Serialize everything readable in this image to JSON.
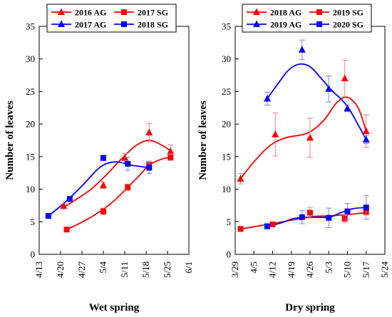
{
  "colors": {
    "ag": "#ff0000",
    "sg": "#ff0000",
    "ag_alt": "#0000ff",
    "sg_alt": "#0000ff"
  },
  "chart_data": [
    {
      "type": "scatter",
      "xlabel": "Wet spring",
      "ylabel": "Number of leaves",
      "ylim": [
        0,
        35
      ],
      "yticks": [
        0,
        5,
        10,
        15,
        20,
        25,
        30,
        35
      ],
      "xticks": [
        "4/13",
        "4/20",
        "4/27",
        "5/4",
        "5/11",
        "5/18",
        "5/25",
        "6/1"
      ],
      "grid": false,
      "legend": "top-left",
      "series": [
        {
          "name": "2016 AG",
          "color": "#ff0000",
          "marker": "triangle",
          "x": [
            "4/21",
            "5/4",
            "5/11",
            "5/19",
            "5/26"
          ],
          "values": [
            7.4,
            10.6,
            14.8,
            18.7,
            15.8
          ],
          "err": [
            0.3,
            0.5,
            0.7,
            1.4,
            1.0
          ],
          "curve_y": [
            7.2,
            8.4,
            10.0,
            12.2,
            14.7,
            16.8,
            17.5,
            16.8,
            15.9
          ]
        },
        {
          "name": "2017 SG",
          "color": "#ff0000",
          "marker": "square",
          "x": [
            "4/22",
            "5/4",
            "5/12",
            "5/19",
            "5/26"
          ],
          "values": [
            3.8,
            6.6,
            10.3,
            13.7,
            14.9
          ],
          "err": [
            0.3,
            0.5,
            0.5,
            0.6,
            0.5
          ],
          "curve_y": [
            3.8,
            4.7,
            6.0,
            8.0,
            10.3,
            12.2,
            13.7,
            14.6,
            14.9
          ]
        },
        {
          "name": "2017 AG",
          "color": "#0000ff",
          "marker": "triangle",
          "x": [],
          "values": [],
          "err": [],
          "curve_y": [
            5.9,
            7.8,
            10.5,
            13.4,
            14.2,
            13.7,
            13.3
          ]
        },
        {
          "name": "2018 SG",
          "color": "#0000ff",
          "marker": "square",
          "x": [
            "4/16",
            "4/23",
            "5/4",
            "5/12",
            "5/19"
          ],
          "values": [
            5.9,
            8.5,
            14.8,
            13.9,
            13.3
          ],
          "err": [
            0.2,
            0.3,
            0.4,
            1.0,
            0.9
          ]
        }
      ],
      "curve_x": {
        "2016 AG": [
          "4/21",
          "4/25",
          "4/30",
          "5/5",
          "5/10",
          "5/15",
          "5/19",
          "5/23",
          "5/26"
        ],
        "2017 SG": [
          "4/22",
          "4/26",
          "5/1",
          "5/7",
          "5/12",
          "5/16",
          "5/19",
          "5/23",
          "5/26"
        ],
        "2017 AG": [
          "4/16",
          "4/21",
          "4/27",
          "5/3",
          "5/8",
          "5/13",
          "5/19"
        ]
      }
    },
    {
      "type": "scatter",
      "xlabel": "Dry spring",
      "ylabel": "Number of leaves",
      "ylim": [
        0,
        35
      ],
      "yticks": [
        0,
        5,
        10,
        15,
        20,
        25,
        30,
        35
      ],
      "xticks": [
        "3/29",
        "4/5",
        "4/12",
        "4/19",
        "4/26",
        "5/3",
        "5/10",
        "5/17",
        "5/24"
      ],
      "grid": false,
      "legend": "top-left",
      "series": [
        {
          "name": "2018 AG",
          "color": "#ff0000",
          "marker": "triangle",
          "x": [
            "3/31",
            "4/13",
            "4/26",
            "5/9",
            "5/17"
          ],
          "values": [
            11.6,
            18.4,
            17.9,
            27.0,
            18.9
          ],
          "err": [
            0.8,
            3.3,
            3.0,
            2.8,
            2.5
          ],
          "curve_y": [
            11.6,
            14.2,
            16.7,
            17.9,
            18.6,
            20.5,
            23.3,
            24.1,
            22.5,
            18.9
          ]
        },
        {
          "name": "2019 SG",
          "color": "#ff0000",
          "marker": "square",
          "x": [
            "3/31",
            "4/12",
            "4/26",
            "5/9",
            "5/17"
          ],
          "values": [
            3.9,
            4.6,
            6.4,
            5.5,
            6.5
          ],
          "err": [
            0.2,
            0.3,
            0.8,
            0.6,
            0.4
          ],
          "curve_y": [
            3.9,
            4.3,
            4.8,
            5.3,
            5.8,
            5.9,
            6.1,
            6.4
          ]
        },
        {
          "name": "2019 AG",
          "color": "#0000ff",
          "marker": "triangle",
          "x": [
            "4/10",
            "4/23",
            "5/3",
            "5/10",
            "5/17"
          ],
          "values": [
            23.9,
            31.4,
            25.4,
            22.4,
            17.6
          ],
          "err": [
            1.0,
            1.5,
            2.0,
            0.5,
            0.6
          ],
          "curve_y": [
            23.9,
            26.2,
            28.3,
            29.2,
            28.8,
            27.1,
            25.2,
            22.7,
            17.6
          ]
        },
        {
          "name": "2020 SG",
          "color": "#0000ff",
          "marker": "square",
          "x": [
            "4/10",
            "4/23",
            "5/3",
            "5/10",
            "5/17"
          ],
          "values": [
            4.3,
            5.7,
            5.6,
            6.6,
            7.2
          ],
          "err": [
            0.4,
            1.0,
            1.5,
            1.2,
            1.8
          ],
          "curve_y": [
            4.3,
            4.8,
            5.5,
            5.7,
            5.7,
            6.3,
            7.0,
            7.2
          ]
        }
      ],
      "curve_x": {
        "2018 AG": [
          "3/31",
          "4/5",
          "4/11",
          "4/17",
          "4/25",
          "5/1",
          "5/6",
          "5/10",
          "5/14",
          "5/17"
        ],
        "2019 SG": [
          "3/31",
          "4/6",
          "4/13",
          "4/20",
          "4/27",
          "5/3",
          "5/10",
          "5/17"
        ],
        "2019 AG": [
          "4/10",
          "4/14",
          "4/18",
          "4/22",
          "4/26",
          "4/30",
          "5/4",
          "5/10",
          "5/17"
        ],
        "2020 SG": [
          "4/10",
          "4/15",
          "4/20",
          "4/26",
          "5/3",
          "5/7",
          "5/12",
          "5/17"
        ]
      }
    }
  ]
}
